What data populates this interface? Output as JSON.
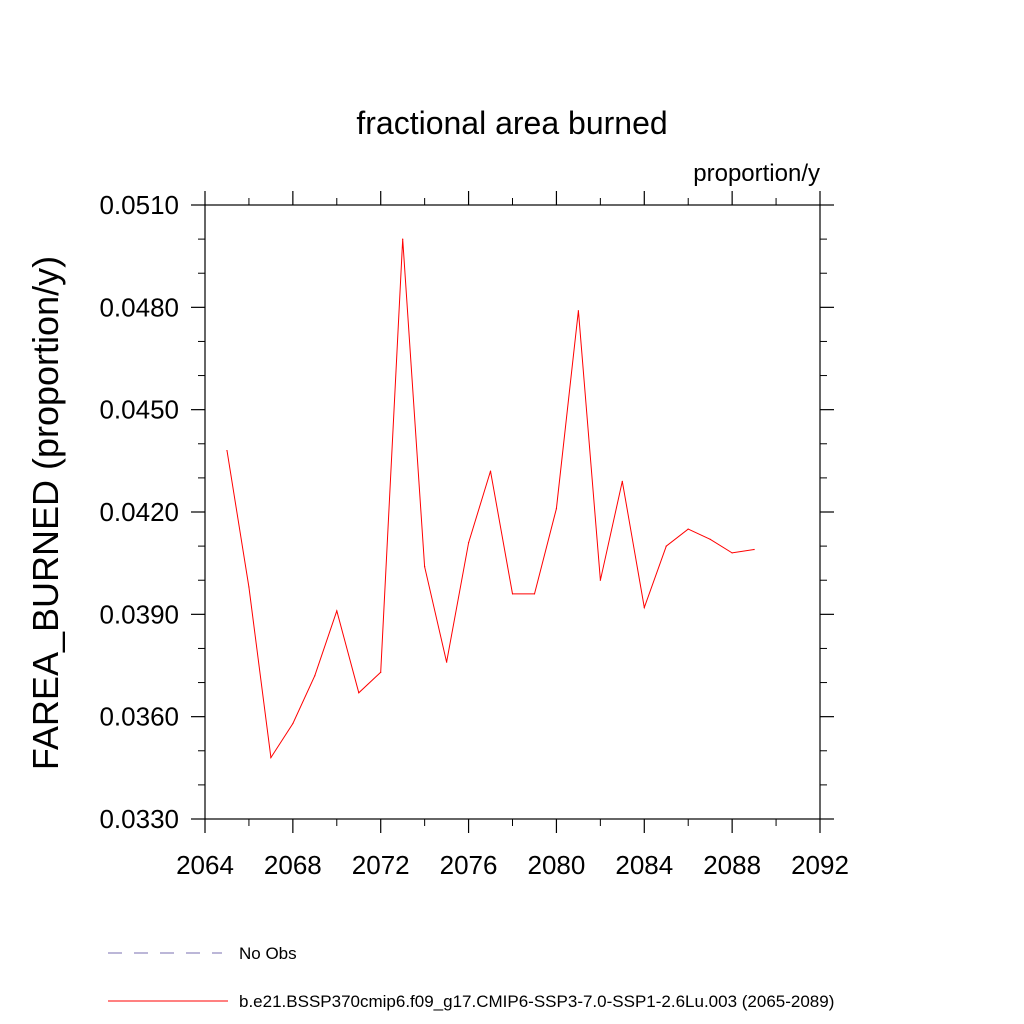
{
  "chart_data": {
    "type": "line",
    "title": "fractional area burned",
    "units_label": "proportion/y",
    "xlabel": "",
    "ylabel": "FAREA_BURNED  (proportion/y)",
    "xlim": [
      2064,
      2092
    ],
    "ylim": [
      0.033,
      0.051
    ],
    "x_ticks": [
      "2064",
      "2068",
      "2072",
      "2076",
      "2080",
      "2084",
      "2088",
      "2092"
    ],
    "y_ticks": [
      "0.0330",
      "0.0360",
      "0.0390",
      "0.0420",
      "0.0450",
      "0.0480",
      "0.0510"
    ],
    "grid": false,
    "series": [
      {
        "name": "b.e21.BSSP370cmip6.f09_g17.CMIP6-SSP3-7.0-SSP1-2.6Lu.003 (2065-2089)",
        "color": "#ff0000",
        "style": "solid",
        "x": [
          2065,
          2066,
          2067,
          2068,
          2069,
          2070,
          2071,
          2072,
          2073,
          2074,
          2075,
          2076,
          2077,
          2078,
          2079,
          2080,
          2081,
          2082,
          2083,
          2084,
          2085,
          2086,
          2087,
          2088,
          2089
        ],
        "y": [
          0.0438,
          0.0398,
          0.0348,
          0.0358,
          0.0372,
          0.0391,
          0.0367,
          0.0373,
          0.05,
          0.0404,
          0.0376,
          0.0411,
          0.0432,
          0.0396,
          0.0396,
          0.0421,
          0.0479,
          0.04,
          0.0429,
          0.0392,
          0.041,
          0.0415,
          0.0412,
          0.0408,
          0.0409
        ]
      }
    ],
    "legend": [
      {
        "label": "No Obs",
        "color": "#7a6fb0",
        "style": "dashed"
      },
      {
        "label": "b.e21.BSSP370cmip6.f09_g17.CMIP6-SSP3-7.0-SSP1-2.6Lu.003 (2065-2089)",
        "color": "#ff0000",
        "style": "solid"
      }
    ],
    "legend_position": "bottom"
  }
}
